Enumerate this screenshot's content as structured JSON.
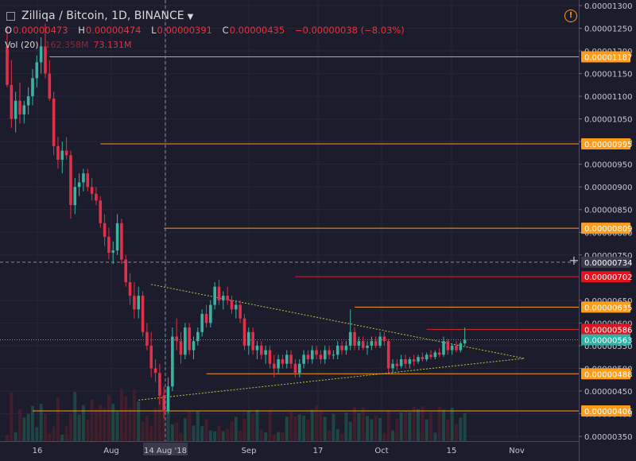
{
  "header": {
    "symbol": "Zilliqa / Bitcoin, 1D, BINANCE",
    "ohlc": [
      {
        "key": "O",
        "value": "0.00000473"
      },
      {
        "key": "H",
        "value": "0.00000474"
      },
      {
        "key": "L",
        "value": "0.00000391"
      },
      {
        "key": "C",
        "value": "0.00000435"
      }
    ],
    "change": "−0.00000038 (−8.03%)",
    "volume_label": "Vol (20)",
    "volume_value_1": "162.358M",
    "volume_value_2": "73.131M"
  },
  "colors": {
    "background": "#1c1c2c",
    "up": "#3bb3a3",
    "down": "#e0304a",
    "level_line": "#ff9c1a",
    "resistance_line": "#e0202a",
    "trendline": "#b8c83a",
    "label_orange_bg": "#ff9c1a",
    "label_red_bg": "#e0141e",
    "label_teal_bg": "#2bb3a8"
  },
  "chart_data": {
    "type": "candlestick",
    "title": "Zilliqa / Bitcoin, 1D, BINANCE",
    "ylim": [
      3.5e-06,
      1.3e-05
    ],
    "y_ticks": [
      "0.00001300",
      "0.00001250",
      "0.00001200",
      "0.00001150",
      "0.00001100",
      "0.00001050",
      "0.00001000",
      "0.00000950",
      "0.00000900",
      "0.00000850",
      "0.00000800",
      "0.00000750",
      "0.00000650",
      "0.00000600",
      "0.00000550",
      "0.00000500",
      "0.00000450",
      "0.00000400",
      "0.00000350"
    ],
    "x_ticks": [
      "16",
      "Aug",
      "14 Aug '18",
      "Sep",
      "17",
      "Oct",
      "15",
      "Nov"
    ],
    "candles_per_day": true,
    "candles": [
      {
        "o": 12.1,
        "h": 12.55,
        "l": 11.2,
        "c": 11.25
      },
      {
        "o": 11.25,
        "h": 11.8,
        "l": 10.3,
        "c": 10.5
      },
      {
        "o": 10.5,
        "h": 11.1,
        "l": 10.2,
        "c": 10.9
      },
      {
        "o": 10.9,
        "h": 11.3,
        "l": 10.4,
        "c": 10.6
      },
      {
        "o": 10.6,
        "h": 10.9,
        "l": 10.4,
        "c": 10.8
      },
      {
        "o": 10.8,
        "h": 11.2,
        "l": 10.6,
        "c": 11.0
      },
      {
        "o": 11.0,
        "h": 11.6,
        "l": 10.8,
        "c": 11.4
      },
      {
        "o": 11.4,
        "h": 11.9,
        "l": 11.2,
        "c": 11.75
      },
      {
        "o": 11.75,
        "h": 12.3,
        "l": 11.5,
        "c": 12.1
      },
      {
        "o": 12.1,
        "h": 12.6,
        "l": 11.4,
        "c": 11.5
      },
      {
        "o": 11.5,
        "h": 11.8,
        "l": 10.9,
        "c": 10.95
      },
      {
        "o": 10.95,
        "h": 11.1,
        "l": 9.7,
        "c": 9.9
      },
      {
        "o": 9.9,
        "h": 10.1,
        "l": 9.4,
        "c": 9.6
      },
      {
        "o": 9.6,
        "h": 10.0,
        "l": 9.3,
        "c": 9.8
      },
      {
        "o": 9.8,
        "h": 10.1,
        "l": 9.6,
        "c": 9.7
      },
      {
        "o": 9.7,
        "h": 9.8,
        "l": 8.3,
        "c": 8.6
      },
      {
        "o": 8.6,
        "h": 9.2,
        "l": 8.4,
        "c": 9.0
      },
      {
        "o": 9.0,
        "h": 9.3,
        "l": 8.8,
        "c": 9.1
      },
      {
        "o": 9.1,
        "h": 9.4,
        "l": 8.9,
        "c": 9.3
      },
      {
        "o": 9.3,
        "h": 9.4,
        "l": 8.9,
        "c": 9.0
      },
      {
        "o": 9.0,
        "h": 9.2,
        "l": 8.7,
        "c": 8.85
      },
      {
        "o": 8.85,
        "h": 9.0,
        "l": 8.6,
        "c": 8.7
      },
      {
        "o": 8.7,
        "h": 8.8,
        "l": 8.1,
        "c": 8.2
      },
      {
        "o": 8.2,
        "h": 8.4,
        "l": 7.7,
        "c": 7.9
      },
      {
        "o": 7.9,
        "h": 8.1,
        "l": 7.4,
        "c": 7.55
      },
      {
        "o": 7.55,
        "h": 7.8,
        "l": 7.3,
        "c": 7.6
      },
      {
        "o": 7.6,
        "h": 8.4,
        "l": 7.5,
        "c": 8.2
      },
      {
        "o": 8.2,
        "h": 8.3,
        "l": 7.3,
        "c": 7.4
      },
      {
        "o": 7.4,
        "h": 7.5,
        "l": 6.8,
        "c": 6.9
      },
      {
        "o": 6.9,
        "h": 7.1,
        "l": 6.4,
        "c": 6.6
      },
      {
        "o": 6.6,
        "h": 6.9,
        "l": 6.1,
        "c": 6.3
      },
      {
        "o": 6.3,
        "h": 6.8,
        "l": 6.1,
        "c": 6.6
      },
      {
        "o": 6.6,
        "h": 6.7,
        "l": 5.7,
        "c": 5.8
      },
      {
        "o": 5.8,
        "h": 6.0,
        "l": 5.4,
        "c": 5.5
      },
      {
        "o": 5.5,
        "h": 5.8,
        "l": 4.8,
        "c": 5.0
      },
      {
        "o": 5.0,
        "h": 5.2,
        "l": 4.7,
        "c": 4.9
      },
      {
        "o": 4.9,
        "h": 5.1,
        "l": 4.2,
        "c": 4.4
      },
      {
        "o": 4.4,
        "h": 4.6,
        "l": 3.9,
        "c": 4.05
      },
      {
        "o": 4.05,
        "h": 4.8,
        "l": 4.0,
        "c": 4.6
      },
      {
        "o": 4.6,
        "h": 5.9,
        "l": 4.5,
        "c": 5.7
      },
      {
        "o": 5.7,
        "h": 6.1,
        "l": 5.4,
        "c": 5.6
      },
      {
        "o": 5.6,
        "h": 5.8,
        "l": 5.1,
        "c": 5.3
      },
      {
        "o": 5.3,
        "h": 6.0,
        "l": 5.2,
        "c": 5.9
      },
      {
        "o": 5.9,
        "h": 6.0,
        "l": 5.3,
        "c": 5.4
      },
      {
        "o": 5.4,
        "h": 5.7,
        "l": 5.2,
        "c": 5.6
      },
      {
        "o": 5.6,
        "h": 5.9,
        "l": 5.5,
        "c": 5.8
      },
      {
        "o": 5.8,
        "h": 6.3,
        "l": 5.7,
        "c": 6.2
      },
      {
        "o": 6.2,
        "h": 6.4,
        "l": 5.9,
        "c": 6.0
      },
      {
        "o": 6.0,
        "h": 6.5,
        "l": 5.9,
        "c": 6.4
      },
      {
        "o": 6.4,
        "h": 6.9,
        "l": 6.3,
        "c": 6.8
      },
      {
        "o": 6.8,
        "h": 6.95,
        "l": 6.4,
        "c": 6.5
      },
      {
        "o": 6.5,
        "h": 6.7,
        "l": 6.3,
        "c": 6.6
      },
      {
        "o": 6.6,
        "h": 6.8,
        "l": 6.4,
        "c": 6.5
      },
      {
        "o": 6.5,
        "h": 6.6,
        "l": 6.2,
        "c": 6.3
      },
      {
        "o": 6.3,
        "h": 6.5,
        "l": 6.1,
        "c": 6.4
      },
      {
        "o": 6.4,
        "h": 6.5,
        "l": 6.0,
        "c": 6.1
      },
      {
        "o": 6.1,
        "h": 6.2,
        "l": 5.4,
        "c": 5.5
      },
      {
        "o": 5.5,
        "h": 5.9,
        "l": 5.3,
        "c": 5.8
      },
      {
        "o": 5.8,
        "h": 5.9,
        "l": 5.3,
        "c": 5.4
      },
      {
        "o": 5.4,
        "h": 5.6,
        "l": 5.2,
        "c": 5.5
      },
      {
        "o": 5.5,
        "h": 5.6,
        "l": 5.2,
        "c": 5.3
      },
      {
        "o": 5.3,
        "h": 5.5,
        "l": 5.1,
        "c": 5.4
      },
      {
        "o": 5.4,
        "h": 5.5,
        "l": 5.0,
        "c": 5.1
      },
      {
        "o": 5.1,
        "h": 5.3,
        "l": 4.8,
        "c": 5.0
      },
      {
        "o": 5.0,
        "h": 5.3,
        "l": 4.9,
        "c": 5.2
      },
      {
        "o": 5.2,
        "h": 5.3,
        "l": 5.0,
        "c": 5.1
      },
      {
        "o": 5.1,
        "h": 5.4,
        "l": 5.0,
        "c": 5.3
      },
      {
        "o": 5.3,
        "h": 5.4,
        "l": 5.0,
        "c": 5.1
      },
      {
        "o": 5.1,
        "h": 5.2,
        "l": 4.8,
        "c": 4.9
      },
      {
        "o": 4.9,
        "h": 5.2,
        "l": 4.8,
        "c": 5.1
      },
      {
        "o": 5.1,
        "h": 5.4,
        "l": 5.0,
        "c": 5.3
      },
      {
        "o": 5.3,
        "h": 5.4,
        "l": 5.1,
        "c": 5.2
      },
      {
        "o": 5.2,
        "h": 5.5,
        "l": 5.1,
        "c": 5.4
      },
      {
        "o": 5.4,
        "h": 5.5,
        "l": 5.2,
        "c": 5.3
      },
      {
        "o": 5.3,
        "h": 5.4,
        "l": 5.1,
        "c": 5.2
      },
      {
        "o": 5.2,
        "h": 5.5,
        "l": 5.1,
        "c": 5.4
      },
      {
        "o": 5.4,
        "h": 5.5,
        "l": 5.2,
        "c": 5.3
      },
      {
        "o": 5.3,
        "h": 5.4,
        "l": 5.2,
        "c": 5.3
      },
      {
        "o": 5.3,
        "h": 5.6,
        "l": 5.2,
        "c": 5.5
      },
      {
        "o": 5.5,
        "h": 5.6,
        "l": 5.3,
        "c": 5.4
      },
      {
        "o": 5.4,
        "h": 5.6,
        "l": 5.3,
        "c": 5.5
      },
      {
        "o": 5.5,
        "h": 6.3,
        "l": 5.4,
        "c": 5.8
      },
      {
        "o": 5.8,
        "h": 5.9,
        "l": 5.4,
        "c": 5.5
      },
      {
        "o": 5.5,
        "h": 5.7,
        "l": 5.4,
        "c": 5.6
      },
      {
        "o": 5.6,
        "h": 5.7,
        "l": 5.4,
        "c": 5.45
      },
      {
        "o": 5.45,
        "h": 5.6,
        "l": 5.3,
        "c": 5.5
      },
      {
        "o": 5.5,
        "h": 5.7,
        "l": 5.4,
        "c": 5.6
      },
      {
        "o": 5.6,
        "h": 5.7,
        "l": 5.45,
        "c": 5.5
      },
      {
        "o": 5.5,
        "h": 5.8,
        "l": 5.45,
        "c": 5.7
      },
      {
        "o": 5.7,
        "h": 5.8,
        "l": 5.5,
        "c": 5.6
      },
      {
        "o": 5.6,
        "h": 5.65,
        "l": 4.9,
        "c": 5.0
      },
      {
        "o": 5.0,
        "h": 5.2,
        "l": 4.9,
        "c": 5.1
      },
      {
        "o": 5.1,
        "h": 5.2,
        "l": 4.95,
        "c": 5.05
      },
      {
        "o": 5.05,
        "h": 5.3,
        "l": 5.0,
        "c": 5.2
      },
      {
        "o": 5.2,
        "h": 5.3,
        "l": 5.0,
        "c": 5.1
      },
      {
        "o": 5.1,
        "h": 5.25,
        "l": 5.0,
        "c": 5.2
      },
      {
        "o": 5.2,
        "h": 5.3,
        "l": 5.05,
        "c": 5.15
      },
      {
        "o": 5.15,
        "h": 5.3,
        "l": 5.1,
        "c": 5.25
      },
      {
        "o": 5.25,
        "h": 5.35,
        "l": 5.15,
        "c": 5.2
      },
      {
        "o": 5.2,
        "h": 5.35,
        "l": 5.15,
        "c": 5.3
      },
      {
        "o": 5.3,
        "h": 5.4,
        "l": 5.2,
        "c": 5.25
      },
      {
        "o": 5.25,
        "h": 5.4,
        "l": 5.2,
        "c": 5.35
      },
      {
        "o": 5.35,
        "h": 5.45,
        "l": 5.25,
        "c": 5.3
      },
      {
        "o": 5.3,
        "h": 5.7,
        "l": 5.25,
        "c": 5.6
      },
      {
        "o": 5.6,
        "h": 5.65,
        "l": 5.3,
        "c": 5.4
      },
      {
        "o": 5.4,
        "h": 5.55,
        "l": 5.3,
        "c": 5.5
      },
      {
        "o": 5.5,
        "h": 5.6,
        "l": 5.35,
        "c": 5.4
      },
      {
        "o": 5.4,
        "h": 5.6,
        "l": 5.35,
        "c": 5.55
      },
      {
        "o": 5.55,
        "h": 5.9,
        "l": 5.5,
        "c": 5.63
      }
    ],
    "levels": [
      {
        "value": 1.187e-05,
        "label": "0.00001187",
        "kind": "support_resistance",
        "x_start_index": 10
      },
      {
        "value": 9.95e-06,
        "label": "0.00000995",
        "kind": "support_resistance",
        "x_start_index": 22
      },
      {
        "value": 8.09e-06,
        "label": "0.00000809",
        "kind": "support_resistance",
        "x_start_index": 37
      },
      {
        "value": 7.02e-06,
        "label": "0.00000702",
        "kind": "resistance",
        "x_start_index": 68
      },
      {
        "value": 6.35e-06,
        "label": "0.00000635",
        "kind": "support_resistance",
        "x_start_index": 82
      },
      {
        "value": 5.86e-06,
        "label": "0.00000586",
        "kind": "resistance",
        "x_start_index": 99
      },
      {
        "value": 4.88e-06,
        "label": "0.00000488",
        "kind": "support_resistance",
        "x_start_index": 47
      },
      {
        "value": 4.06e-06,
        "label": "0.00000406",
        "kind": "support_resistance",
        "x_start_index": 6
      }
    ],
    "current_price": {
      "value": 5.63e-06,
      "label": "0.00000563"
    },
    "crosshair": {
      "value": 7.34e-06,
      "label": "0.00000734",
      "x_label": "14 Aug '18"
    },
    "trendlines": [
      {
        "name": "upper",
        "from": {
          "index": 34,
          "value": 6.85
        },
        "to": {
          "index": 122,
          "value": 5.22
        }
      },
      {
        "name": "lower",
        "from": {
          "index": 31,
          "value": 4.3
        },
        "to": {
          "index": 122,
          "value": 5.22
        }
      }
    ],
    "volume_bars_hint": "dim bars along the bottom of the price pane"
  }
}
